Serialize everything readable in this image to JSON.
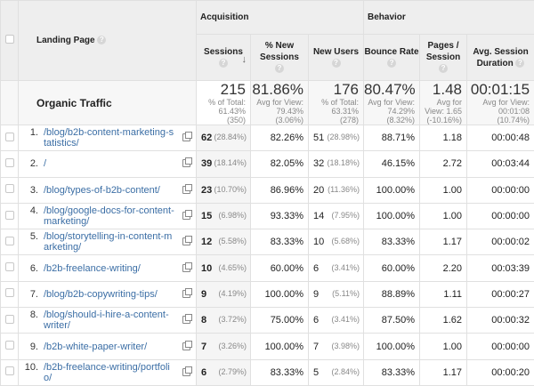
{
  "header": {
    "landing_page": "Landing Page",
    "acquisition": "Acquisition",
    "behavior": "Behavior",
    "columns": {
      "sessions": "Sessions",
      "new_sessions": "% New Sessions",
      "new_users": "New Users",
      "bounce_rate": "Bounce Rate",
      "pages_session": "Pages / Session",
      "avg_duration": "Avg. Session Duration"
    },
    "help": "?",
    "sort_icon": "arrow-down"
  },
  "summary": {
    "label": "Organic Traffic",
    "sessions": {
      "value": "215",
      "l1": "% of Total:",
      "l2": "61.43%",
      "l3": "(350)"
    },
    "new_sessions": {
      "value": "81.86%",
      "l1": "Avg for View:",
      "l2": "79.43%",
      "l3": "(3.06%)"
    },
    "new_users": {
      "value": "176",
      "l1": "% of Total:",
      "l2": "63.31%",
      "l3": "(278)"
    },
    "bounce_rate": {
      "value": "80.47%",
      "l1": "Avg for View:",
      "l2": "74.29%",
      "l3": "(8.32%)"
    },
    "pages_session": {
      "value": "1.48",
      "l1": "Avg for",
      "l2": "View: 1.65",
      "l3": "(-10.16%)"
    },
    "avg_duration": {
      "value": "00:01:15",
      "l1": "Avg for View:",
      "l2": "00:01:08",
      "l3": "(10.74%)"
    }
  },
  "rows": [
    {
      "idx": "1.",
      "page": "/blog/b2b-content-marketing-statistics/",
      "sessions": "62",
      "sessions_pct": "(28.84%)",
      "new_sessions": "82.26%",
      "new_users": "51",
      "new_users_pct": "(28.98%)",
      "bounce": "88.71%",
      "pages": "1.18",
      "duration": "00:00:48"
    },
    {
      "idx": "2.",
      "page": "/",
      "sessions": "39",
      "sessions_pct": "(18.14%)",
      "new_sessions": "82.05%",
      "new_users": "32",
      "new_users_pct": "(18.18%)",
      "bounce": "46.15%",
      "pages": "2.72",
      "duration": "00:03:44"
    },
    {
      "idx": "3.",
      "page": "/blog/types-of-b2b-content/",
      "sessions": "23",
      "sessions_pct": "(10.70%)",
      "new_sessions": "86.96%",
      "new_users": "20",
      "new_users_pct": "(11.36%)",
      "bounce": "100.00%",
      "pages": "1.00",
      "duration": "00:00:00"
    },
    {
      "idx": "4.",
      "page": "/blog/google-docs-for-content-marketing/",
      "sessions": "15",
      "sessions_pct": "(6.98%)",
      "new_sessions": "93.33%",
      "new_users": "14",
      "new_users_pct": "(7.95%)",
      "bounce": "100.00%",
      "pages": "1.00",
      "duration": "00:00:00"
    },
    {
      "idx": "5.",
      "page": "/blog/storytelling-in-content-marketing/",
      "sessions": "12",
      "sessions_pct": "(5.58%)",
      "new_sessions": "83.33%",
      "new_users": "10",
      "new_users_pct": "(5.68%)",
      "bounce": "83.33%",
      "pages": "1.17",
      "duration": "00:00:02"
    },
    {
      "idx": "6.",
      "page": "/b2b-freelance-writing/",
      "sessions": "10",
      "sessions_pct": "(4.65%)",
      "new_sessions": "60.00%",
      "new_users": "6",
      "new_users_pct": "(3.41%)",
      "bounce": "60.00%",
      "pages": "2.20",
      "duration": "00:03:39"
    },
    {
      "idx": "7.",
      "page": "/blog/b2b-copywriting-tips/",
      "sessions": "9",
      "sessions_pct": "(4.19%)",
      "new_sessions": "100.00%",
      "new_users": "9",
      "new_users_pct": "(5.11%)",
      "bounce": "88.89%",
      "pages": "1.11",
      "duration": "00:00:27"
    },
    {
      "idx": "8.",
      "page": "/blog/should-i-hire-a-content-writer/",
      "sessions": "8",
      "sessions_pct": "(3.72%)",
      "new_sessions": "75.00%",
      "new_users": "6",
      "new_users_pct": "(3.41%)",
      "bounce": "87.50%",
      "pages": "1.62",
      "duration": "00:00:32"
    },
    {
      "idx": "9.",
      "page": "/b2b-white-paper-writer/",
      "sessions": "7",
      "sessions_pct": "(3.26%)",
      "new_sessions": "100.00%",
      "new_users": "7",
      "new_users_pct": "(3.98%)",
      "bounce": "100.00%",
      "pages": "1.00",
      "duration": "00:00:00"
    },
    {
      "idx": "10.",
      "page": "/b2b-freelance-writing/portfolio/",
      "sessions": "6",
      "sessions_pct": "(2.79%)",
      "new_sessions": "83.33%",
      "new_users": "5",
      "new_users_pct": "(2.84%)",
      "bounce": "83.33%",
      "pages": "1.17",
      "duration": "00:00:20"
    }
  ]
}
